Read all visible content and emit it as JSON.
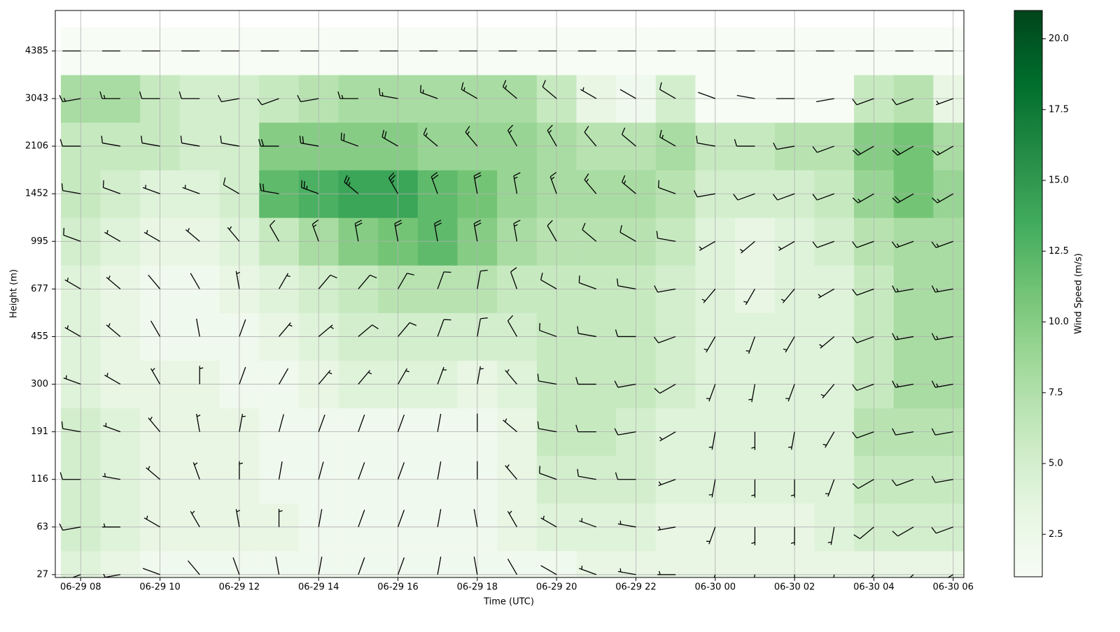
{
  "chart_data": {
    "type": "wind-barb-heatmap",
    "xlabel": "Time (UTC)",
    "ylabel": "Height (m)",
    "colorbar_label": "Wind Speed (m/s)",
    "x": [
      8,
      9,
      10,
      11,
      12,
      13,
      14,
      15,
      16,
      17,
      18,
      19,
      20,
      21,
      22,
      23,
      24,
      25,
      26,
      27,
      28,
      29,
      30
    ],
    "levels": [
      27,
      63,
      116,
      191,
      300,
      455,
      677,
      995,
      1452,
      2106,
      3043,
      4385
    ],
    "xlim": [
      7.36,
      30.27
    ],
    "xticks": [
      {
        "value": 8,
        "label": "06-29 08"
      },
      {
        "value": 10,
        "label": "06-29 10"
      },
      {
        "value": 12,
        "label": "06-29 12"
      },
      {
        "value": 14,
        "label": "06-29 14"
      },
      {
        "value": 16,
        "label": "06-29 16"
      },
      {
        "value": 18,
        "label": "06-29 18"
      },
      {
        "value": 20,
        "label": "06-29 20"
      },
      {
        "value": 22,
        "label": "06-29 22"
      },
      {
        "value": 24,
        "label": "06-30 00"
      },
      {
        "value": 26,
        "label": "06-30 02"
      },
      {
        "value": 28,
        "label": "06-30 04"
      },
      {
        "value": 30,
        "label": "06-30 06"
      }
    ],
    "clim": [
      1,
      21
    ],
    "cticks": [
      2.5,
      {
        "value": 5,
        "label": "5.0"
      },
      7.5,
      {
        "value": 10,
        "label": "10.0"
      },
      12.5,
      {
        "value": 15,
        "label": "15.0"
      },
      17.5,
      {
        "value": 20,
        "label": "20.0"
      }
    ],
    "colormap": [
      "#f7fcf5",
      "#e5f5e0",
      "#c7e9c0",
      "#a1d99b",
      "#74c476",
      "#41ab5d",
      "#238b45",
      "#006d2c",
      "#00441b"
    ],
    "barb_color": "#000000",
    "grid": true,
    "speed": [
      [
        4,
        3,
        2,
        2,
        2,
        2,
        2,
        2,
        2,
        2,
        2,
        2,
        2,
        3,
        3,
        3,
        3,
        3,
        3,
        3,
        3,
        3,
        3
      ],
      [
        5,
        4,
        3,
        3,
        3,
        3,
        2,
        2,
        2,
        2,
        2,
        3,
        4,
        4,
        4,
        3,
        3,
        3,
        3,
        4,
        5,
        5,
        5
      ],
      [
        5,
        4,
        3,
        3,
        3,
        2,
        2,
        2,
        2,
        2,
        2,
        3,
        5,
        5,
        5,
        4,
        4,
        4,
        4,
        4,
        6,
        6,
        6
      ],
      [
        5,
        4,
        3,
        3,
        3,
        2,
        2,
        2,
        2,
        2,
        2,
        3,
        6,
        6,
        5,
        4,
        4,
        4,
        4,
        4,
        7,
        7,
        7
      ],
      [
        4,
        3,
        3,
        3,
        2,
        2,
        3,
        4,
        4,
        4,
        3,
        4,
        6,
        6,
        6,
        5,
        4,
        4,
        4,
        4,
        6,
        8,
        8
      ],
      [
        4,
        3,
        2,
        2,
        2,
        3,
        4,
        5,
        5,
        5,
        5,
        5,
        6,
        6,
        6,
        5,
        4,
        4,
        4,
        4,
        6,
        8,
        8
      ],
      [
        4,
        3,
        2,
        2,
        3,
        4,
        5,
        6,
        7,
        7,
        7,
        6,
        6,
        6,
        6,
        5,
        4,
        3,
        4,
        4,
        6,
        8,
        8
      ],
      [
        5,
        4,
        3,
        3,
        4,
        6,
        8,
        10,
        11,
        12,
        10,
        8,
        7,
        7,
        7,
        6,
        4,
        3,
        4,
        5,
        7,
        8,
        8
      ],
      [
        6,
        5,
        4,
        4,
        5,
        12,
        13,
        14,
        14,
        12,
        11,
        9,
        8,
        8,
        8,
        7,
        5,
        5,
        5,
        6,
        9,
        11,
        9
      ],
      [
        6,
        6,
        6,
        5,
        5,
        10,
        10,
        10,
        10,
        9,
        9,
        9,
        8,
        7,
        7,
        8,
        6,
        6,
        7,
        7,
        10,
        11,
        8
      ],
      [
        8,
        8,
        6,
        5,
        5,
        6,
        7,
        8,
        8,
        8,
        8,
        8,
        6,
        3,
        2,
        5,
        1,
        1,
        1,
        1,
        6,
        7,
        3
      ],
      [
        1,
        1,
        1,
        1,
        1,
        1,
        1,
        1,
        1,
        1,
        1,
        1,
        1,
        1,
        1,
        1,
        1,
        1,
        1,
        1,
        1,
        1,
        1
      ]
    ],
    "direction": [
      [
        250,
        260,
        290,
        320,
        340,
        350,
        10,
        20,
        20,
        10,
        350,
        330,
        300,
        290,
        280,
        270,
        200,
        190,
        180,
        190,
        220,
        230,
        240
      ],
      [
        260,
        270,
        300,
        330,
        350,
        0,
        10,
        20,
        20,
        10,
        350,
        330,
        300,
        290,
        280,
        260,
        200,
        180,
        180,
        190,
        230,
        240,
        250
      ],
      [
        270,
        280,
        310,
        340,
        0,
        10,
        15,
        20,
        20,
        10,
        0,
        320,
        290,
        280,
        270,
        250,
        190,
        180,
        180,
        200,
        240,
        250,
        260
      ],
      [
        280,
        290,
        320,
        350,
        10,
        15,
        20,
        20,
        20,
        10,
        0,
        310,
        280,
        270,
        260,
        240,
        190,
        180,
        190,
        210,
        250,
        260,
        260
      ],
      [
        290,
        300,
        330,
        0,
        20,
        30,
        40,
        40,
        30,
        20,
        10,
        320,
        280,
        270,
        260,
        240,
        200,
        190,
        200,
        220,
        250,
        260,
        260
      ],
      [
        300,
        310,
        330,
        350,
        20,
        40,
        50,
        50,
        40,
        20,
        10,
        330,
        290,
        280,
        270,
        250,
        210,
        200,
        210,
        230,
        250,
        260,
        260
      ],
      [
        300,
        310,
        320,
        330,
        350,
        30,
        40,
        40,
        30,
        20,
        10,
        340,
        300,
        290,
        280,
        260,
        220,
        210,
        220,
        240,
        250,
        260,
        260
      ],
      [
        290,
        300,
        300,
        310,
        320,
        330,
        340,
        350,
        350,
        350,
        350,
        350,
        330,
        310,
        300,
        280,
        240,
        230,
        240,
        250,
        250,
        250,
        250
      ],
      [
        280,
        290,
        290,
        290,
        300,
        280,
        290,
        310,
        330,
        340,
        350,
        350,
        340,
        320,
        310,
        290,
        260,
        250,
        250,
        250,
        240,
        240,
        240
      ],
      [
        270,
        280,
        280,
        280,
        280,
        270,
        280,
        290,
        300,
        310,
        320,
        330,
        330,
        320,
        310,
        300,
        280,
        270,
        260,
        250,
        240,
        240,
        240
      ],
      [
        260,
        270,
        270,
        270,
        260,
        250,
        260,
        270,
        280,
        290,
        300,
        310,
        310,
        300,
        300,
        300,
        290,
        280,
        270,
        260,
        250,
        250,
        250
      ],
      [
        270,
        270,
        270,
        270,
        270,
        270,
        270,
        270,
        270,
        270,
        270,
        270,
        270,
        270,
        270,
        270,
        270,
        270,
        270,
        270,
        270,
        270,
        270
      ]
    ]
  }
}
